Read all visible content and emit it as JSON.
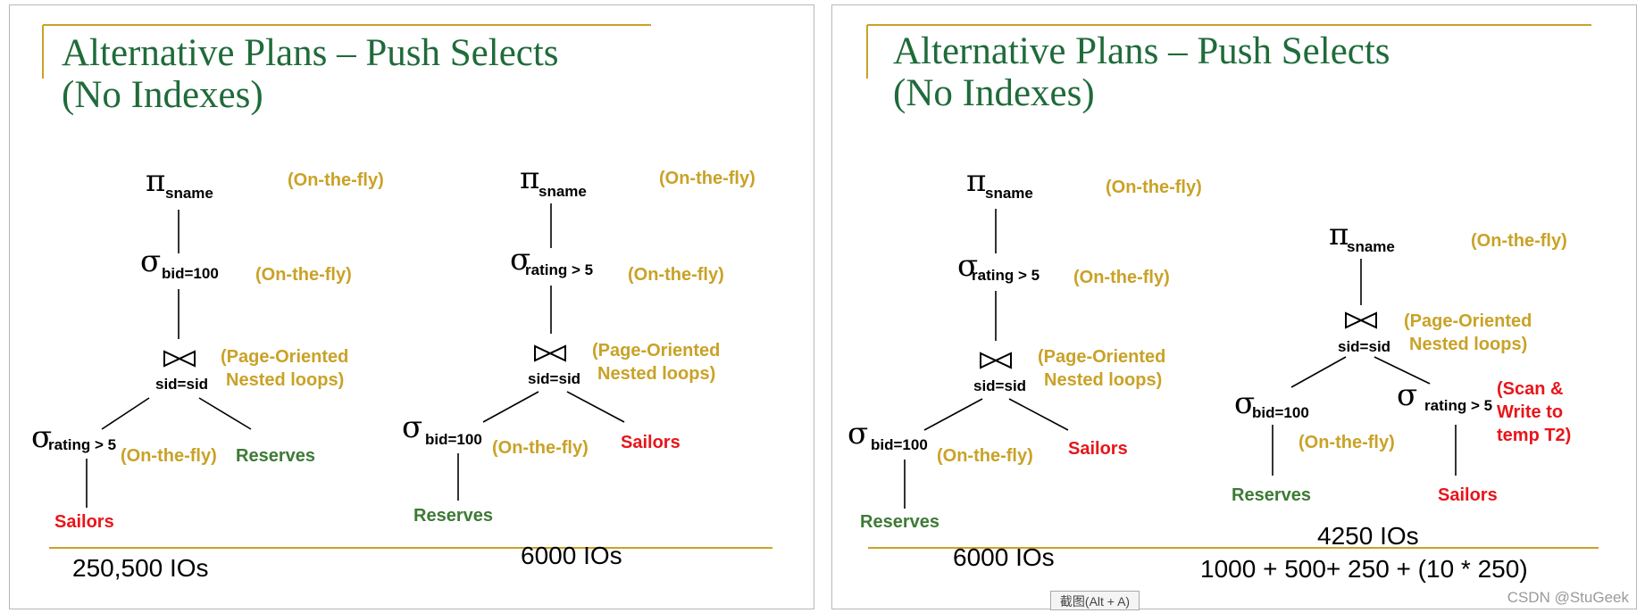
{
  "colors": {
    "title": "#1f6b3a",
    "annotation": "#c9a227",
    "relation_red": "#e8151a",
    "relation_green": "#3d7a35",
    "rule": "#c9a227"
  },
  "slides": [
    {
      "title_line1": "Alternative Plans – Push Selects",
      "title_line2": "(No Indexes)",
      "plan_a": {
        "project_sym": "π",
        "project_sub": "sname",
        "project_note": "(On-the-fly)",
        "select_sym": "σ",
        "select_sub": "bid=100",
        "select_note": "(On-the-fly)",
        "join_sub": "sid=sid",
        "join_note_1": "(Page-Oriented",
        "join_note_2": "Nested  loops)",
        "left_select_sym": "σ",
        "left_select_sub": "rating > 5",
        "left_select_note": "(On-the-fly)",
        "right_rel": "Reserves",
        "leaf_rel": "Sailors",
        "cost": "250,500 IOs"
      },
      "plan_b": {
        "project_sym": "π",
        "project_sub": "sname",
        "project_note": "(On-the-fly)",
        "select_sym": "σ",
        "select_sub": "rating > 5",
        "select_note": "(On-the-fly)",
        "join_sub": "sid=sid",
        "join_note_1": "(Page-Oriented",
        "join_note_2": "Nested  loops)",
        "left_select_sym": "σ",
        "left_select_sub": "bid=100",
        "left_select_note": "(On-the-fly)",
        "right_rel": "Sailors",
        "leaf_rel": "Reserves",
        "cost": "6000 IOs"
      }
    },
    {
      "title_line1": "Alternative Plans – Push Selects",
      "title_line2": "(No Indexes)",
      "plan_a": {
        "project_sym": "π",
        "project_sub": "sname",
        "project_note": "(On-the-fly)",
        "select_sym": "σ",
        "select_sub": "rating > 5",
        "select_note": "(On-the-fly)",
        "join_sub": "sid=sid",
        "join_note_1": "(Page-Oriented",
        "join_note_2": "Nested  loops)",
        "left_select_sym": "σ",
        "left_select_sub": "bid=100",
        "left_select_note": "(On-the-fly)",
        "right_rel": "Sailors",
        "leaf_rel": "Reserves",
        "cost": "6000 IOs"
      },
      "plan_b": {
        "project_sym": "π",
        "project_sub": "sname",
        "project_note": "(On-the-fly)",
        "join_sub": "sid=sid",
        "join_note_1": "(Page-Oriented",
        "join_note_2": "Nested  loops)",
        "left_select_sym": "σ",
        "left_select_sub": "bid=100",
        "left_select_note": "(On-the-fly)",
        "right_select_sym": "σ",
        "right_select_sub": "rating > 5",
        "right_select_note_1": "(Scan &",
        "right_select_note_2": "Write to",
        "right_select_note_3": "temp T2)",
        "left_rel": "Reserves",
        "right_rel": "Sailors",
        "cost": "4250 IOs",
        "cost_detail": "1000 + 500+ 250 + (10 * 250)"
      }
    }
  ],
  "tooltip": "截图(Alt + A)",
  "watermark": "CSDN @StuGeek"
}
